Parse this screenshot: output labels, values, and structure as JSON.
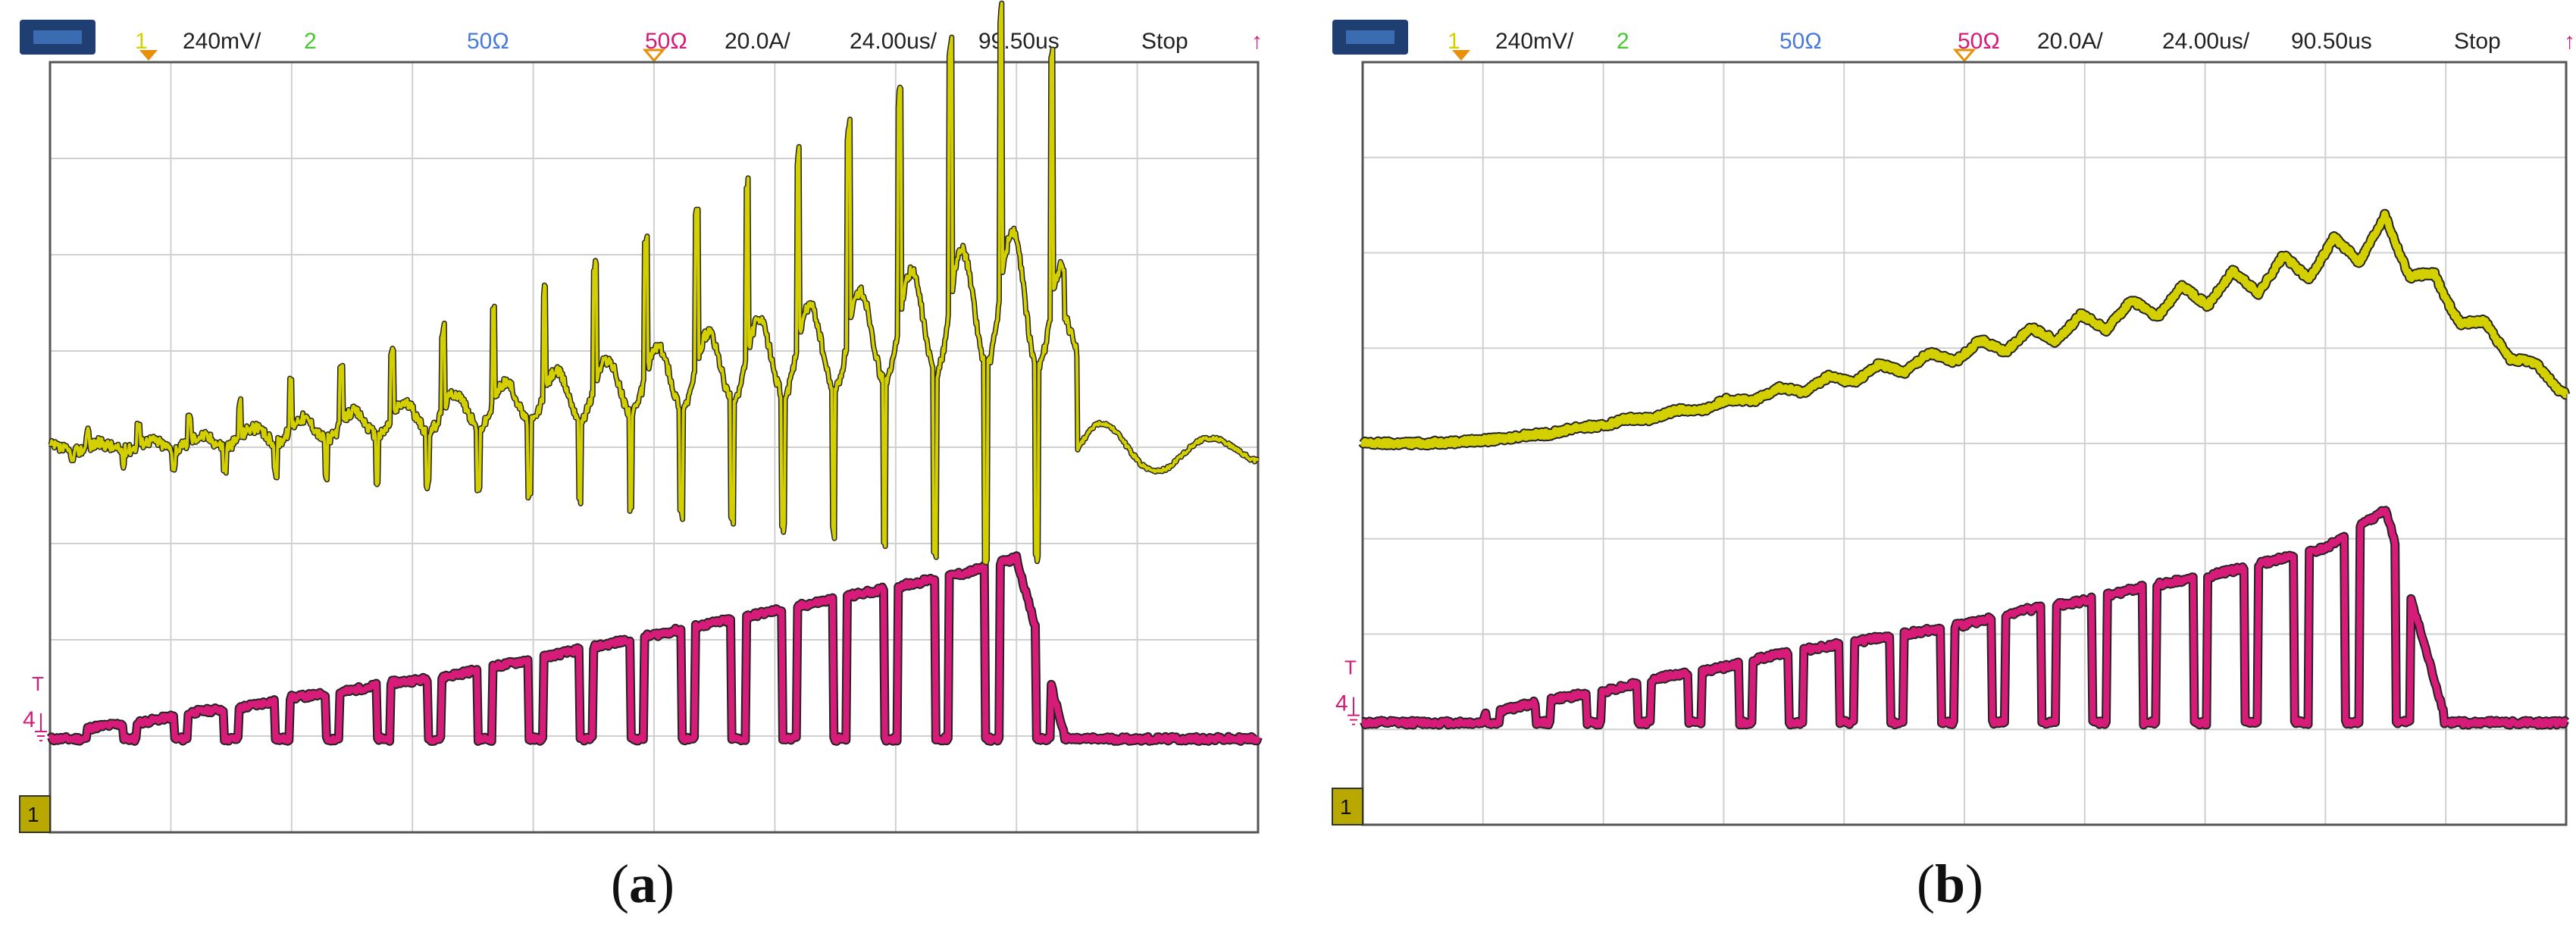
{
  "chart_data": [
    {
      "type": "line",
      "panel": "a",
      "caption": {
        "open": "(",
        "letter": "a",
        "close": ")"
      },
      "header": {
        "ch1_num": "1",
        "ch1_scale": "240mV/",
        "ch2_num": "2",
        "ch3_label": "50Ω",
        "ch4_label": "50Ω",
        "ch4_scale": "20.0A/",
        "timebase": "24.00us/",
        "delay": "99.50us",
        "status": "Stop"
      },
      "grid": true,
      "ch4_marker": "4",
      "trig_marker": "T",
      "ch1_ground": "1",
      "colors": {
        "ch1": "#d4d000",
        "ch4": "#d61c78",
        "grid": "#d0d0d0",
        "frame": "#555555",
        "ch3": "#4a7ad9",
        "ch2": "#48c830",
        "trigger": "#e8900a"
      },
      "x": [
        0,
        0.4,
        0.8,
        1.2,
        1.6,
        2.0,
        2.4,
        2.8,
        3.2,
        3.6,
        4.0,
        4.4,
        4.8,
        5.2,
        5.6,
        6.0,
        6.4,
        6.8,
        7.2,
        7.6,
        8.0,
        8.4,
        8.8,
        9.2,
        9.6,
        10.0
      ],
      "series": [
        {
          "channel": "ch1",
          "units": "div",
          "values": [
            3.98,
            4.0,
            4.02,
            4.05,
            4.1,
            4.18,
            4.22,
            4.28,
            4.35,
            4.42,
            4.5,
            4.58,
            4.66,
            4.76,
            4.85,
            4.95,
            5.05,
            5.15,
            5.3,
            5.45,
            5.58,
            5.3,
            4.1,
            3.55,
            3.95,
            3.97
          ]
        },
        {
          "channel": "ch4",
          "units": "div",
          "values": [
            1.0,
            1.1,
            1.15,
            1.25,
            1.3,
            1.4,
            1.45,
            1.55,
            1.6,
            1.7,
            1.8,
            1.9,
            2.0,
            2.1,
            2.2,
            2.3,
            2.4,
            2.5,
            2.6,
            2.7,
            2.85,
            1.0,
            1.0,
            1.0,
            1.0,
            1.0
          ]
        }
      ]
    },
    {
      "type": "line",
      "panel": "b",
      "caption": {
        "open": "(",
        "letter": "b",
        "close": ")"
      },
      "header": {
        "ch1_num": "1",
        "ch1_scale": "240mV/",
        "ch2_num": "2",
        "ch3_label": "50Ω",
        "ch4_label": "50Ω",
        "ch4_scale": "20.0A/",
        "timebase": "24.00us/",
        "delay": "90.50us",
        "status": "Stop"
      },
      "grid": true,
      "ch4_marker": "4",
      "trig_marker": "T",
      "ch1_ground": "1",
      "colors": {
        "ch1": "#d4d000",
        "ch4": "#d61c78",
        "grid": "#d0d0d0",
        "frame": "#555555",
        "ch3": "#4a7ad9",
        "ch2": "#48c830",
        "trigger": "#e8900a"
      },
      "x": [
        0,
        0.5,
        1.0,
        1.5,
        2.0,
        2.5,
        3.0,
        3.5,
        4.0,
        4.5,
        5.0,
        5.5,
        6.0,
        6.5,
        7.0,
        7.5,
        8.0,
        8.5,
        9.0,
        9.5,
        10.0
      ],
      "series": [
        {
          "channel": "ch1",
          "units": "div",
          "values": [
            4.0,
            4.0,
            4.03,
            4.1,
            4.2,
            4.3,
            4.42,
            4.55,
            4.68,
            4.82,
            4.96,
            5.1,
            5.25,
            5.42,
            5.58,
            5.75,
            5.95,
            6.2,
            5.5,
            5.0,
            4.55
          ]
        },
        {
          "channel": "ch4",
          "units": "div",
          "values": [
            1.1,
            1.1,
            1.15,
            1.3,
            1.4,
            1.55,
            1.65,
            1.8,
            1.9,
            2.0,
            2.1,
            2.25,
            2.35,
            2.5,
            2.6,
            2.75,
            2.9,
            3.3,
            1.1,
            1.1,
            1.1
          ]
        }
      ]
    }
  ]
}
